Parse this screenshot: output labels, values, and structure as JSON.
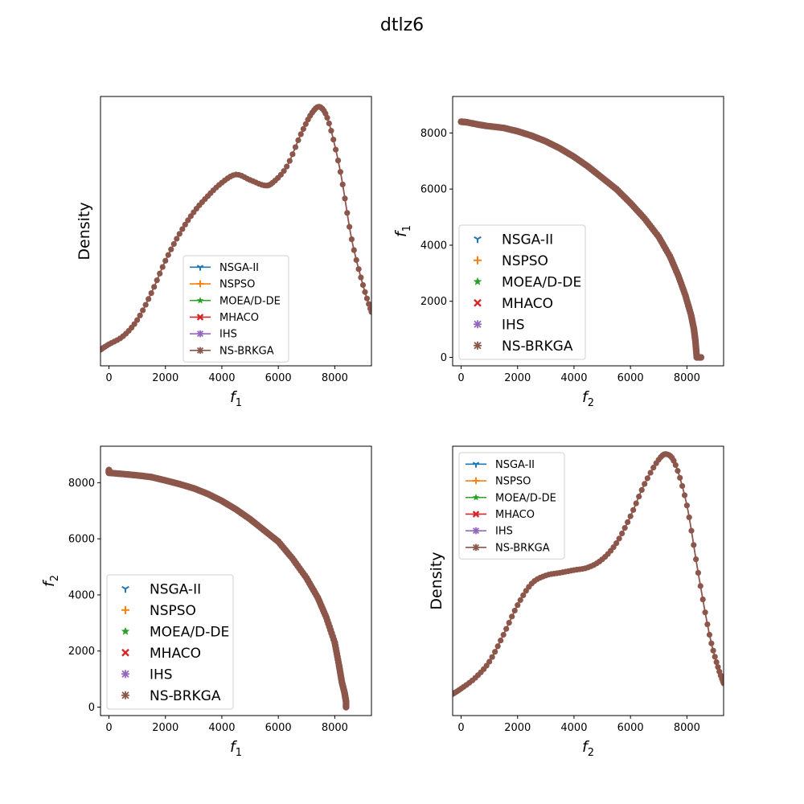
{
  "title": "dtlz6",
  "colors": {
    "NSGA-II": "#1f77b4",
    "NSPSO": "#ff7f0e",
    "MOEA/D-DE": "#2ca02c",
    "MHACO": "#d62728",
    "IHS": "#9467bd",
    "NS-BRKGA": "#8c564b"
  },
  "chart_data": [
    {
      "type": "line",
      "xlabel": "f1",
      "ylabel": "Density",
      "xlim": [
        -300,
        9300
      ],
      "ylim": [
        0,
        1
      ],
      "xticks": [
        "0",
        "2000",
        "4000",
        "6000",
        "8000"
      ],
      "legend": "lower-center",
      "series_names": [
        "NSGA-II",
        "NSPSO",
        "MOEA/D-DE",
        "MHACO",
        "IHS",
        "NS-BRKGA"
      ],
      "curve": [
        [
          -300,
          0.06
        ],
        [
          0,
          0.08
        ],
        [
          500,
          0.11
        ],
        [
          1000,
          0.17
        ],
        [
          1500,
          0.27
        ],
        [
          2000,
          0.39
        ],
        [
          2500,
          0.49
        ],
        [
          3000,
          0.57
        ],
        [
          3500,
          0.63
        ],
        [
          4000,
          0.68
        ],
        [
          4500,
          0.71
        ],
        [
          5000,
          0.69
        ],
        [
          5500,
          0.67
        ],
        [
          5800,
          0.68
        ],
        [
          6300,
          0.74
        ],
        [
          6800,
          0.86
        ],
        [
          7200,
          0.94
        ],
        [
          7500,
          0.96
        ],
        [
          7800,
          0.9
        ],
        [
          8200,
          0.72
        ],
        [
          8600,
          0.47
        ],
        [
          9000,
          0.3
        ],
        [
          9300,
          0.2
        ]
      ]
    },
    {
      "type": "scatter",
      "xlabel": "f2",
      "ylabel": "f1",
      "xlim": [
        -300,
        9300
      ],
      "ylim": [
        -300,
        9300
      ],
      "xticks": [
        "0",
        "2000",
        "4000",
        "6000",
        "8000"
      ],
      "yticks": [
        "0",
        "2000",
        "4000",
        "6000",
        "8000"
      ],
      "legend": "lower-left",
      "series_names": [
        "NSGA-II",
        "NSPSO",
        "MOEA/D-DE",
        "MHACO",
        "IHS",
        "NS-BRKGA"
      ],
      "points": [
        [
          0,
          8400
        ],
        [
          200,
          8380
        ],
        [
          600,
          8300
        ],
        [
          900,
          8250
        ],
        [
          1500,
          8180
        ],
        [
          2000,
          8060
        ],
        [
          2500,
          7900
        ],
        [
          3000,
          7700
        ],
        [
          3500,
          7450
        ],
        [
          4000,
          7150
        ],
        [
          4500,
          6800
        ],
        [
          5000,
          6400
        ],
        [
          5500,
          6000
        ],
        [
          6000,
          5500
        ],
        [
          6500,
          4950
        ],
        [
          7000,
          4300
        ],
        [
          7400,
          3600
        ],
        [
          7700,
          2900
        ],
        [
          7950,
          2200
        ],
        [
          8150,
          1500
        ],
        [
          8250,
          1000
        ],
        [
          8300,
          600
        ],
        [
          8350,
          0
        ],
        [
          8500,
          0
        ]
      ]
    },
    {
      "type": "scatter",
      "xlabel": "f1",
      "ylabel": "f2",
      "xlim": [
        -300,
        9300
      ],
      "ylim": [
        -300,
        9300
      ],
      "xticks": [
        "0",
        "2000",
        "4000",
        "6000",
        "8000"
      ],
      "yticks": [
        "0",
        "2000",
        "4000",
        "6000",
        "8000"
      ],
      "legend": "lower-left",
      "series_names": [
        "NSGA-II",
        "NSPSO",
        "MOEA/D-DE",
        "MHACO",
        "IHS",
        "NS-BRKGA"
      ],
      "points": [
        [
          0,
          8450
        ],
        [
          0,
          8350
        ],
        [
          600,
          8300
        ],
        [
          1100,
          8250
        ],
        [
          1500,
          8200
        ],
        [
          2000,
          8080
        ],
        [
          2500,
          7950
        ],
        [
          3000,
          7800
        ],
        [
          3500,
          7600
        ],
        [
          4000,
          7350
        ],
        [
          4500,
          7050
        ],
        [
          5000,
          6700
        ],
        [
          5500,
          6300
        ],
        [
          6000,
          5900
        ],
        [
          6500,
          5300
        ],
        [
          7000,
          4600
        ],
        [
          7400,
          3900
        ],
        [
          7700,
          3200
        ],
        [
          8000,
          2300
        ],
        [
          8150,
          1500
        ],
        [
          8250,
          900
        ],
        [
          8350,
          500
        ],
        [
          8400,
          200
        ],
        [
          8400,
          0
        ]
      ]
    },
    {
      "type": "line",
      "xlabel": "f2",
      "ylabel": "Density",
      "xlim": [
        -300,
        9300
      ],
      "ylim": [
        0,
        1
      ],
      "xticks": [
        "0",
        "2000",
        "4000",
        "6000",
        "8000"
      ],
      "legend": "upper-left",
      "series_names": [
        "NSGA-II",
        "NSPSO",
        "MOEA/D-DE",
        "MHACO",
        "IHS",
        "NS-BRKGA"
      ],
      "curve": [
        [
          -300,
          0.08
        ],
        [
          0,
          0.1
        ],
        [
          500,
          0.14
        ],
        [
          1000,
          0.2
        ],
        [
          1500,
          0.3
        ],
        [
          2000,
          0.41
        ],
        [
          2500,
          0.49
        ],
        [
          3000,
          0.52
        ],
        [
          3500,
          0.53
        ],
        [
          4000,
          0.54
        ],
        [
          4500,
          0.55
        ],
        [
          5000,
          0.58
        ],
        [
          5500,
          0.64
        ],
        [
          6000,
          0.74
        ],
        [
          6500,
          0.86
        ],
        [
          7000,
          0.95
        ],
        [
          7300,
          0.97
        ],
        [
          7600,
          0.93
        ],
        [
          8000,
          0.78
        ],
        [
          8400,
          0.53
        ],
        [
          8800,
          0.3
        ],
        [
          9100,
          0.18
        ],
        [
          9300,
          0.12
        ]
      ]
    }
  ]
}
